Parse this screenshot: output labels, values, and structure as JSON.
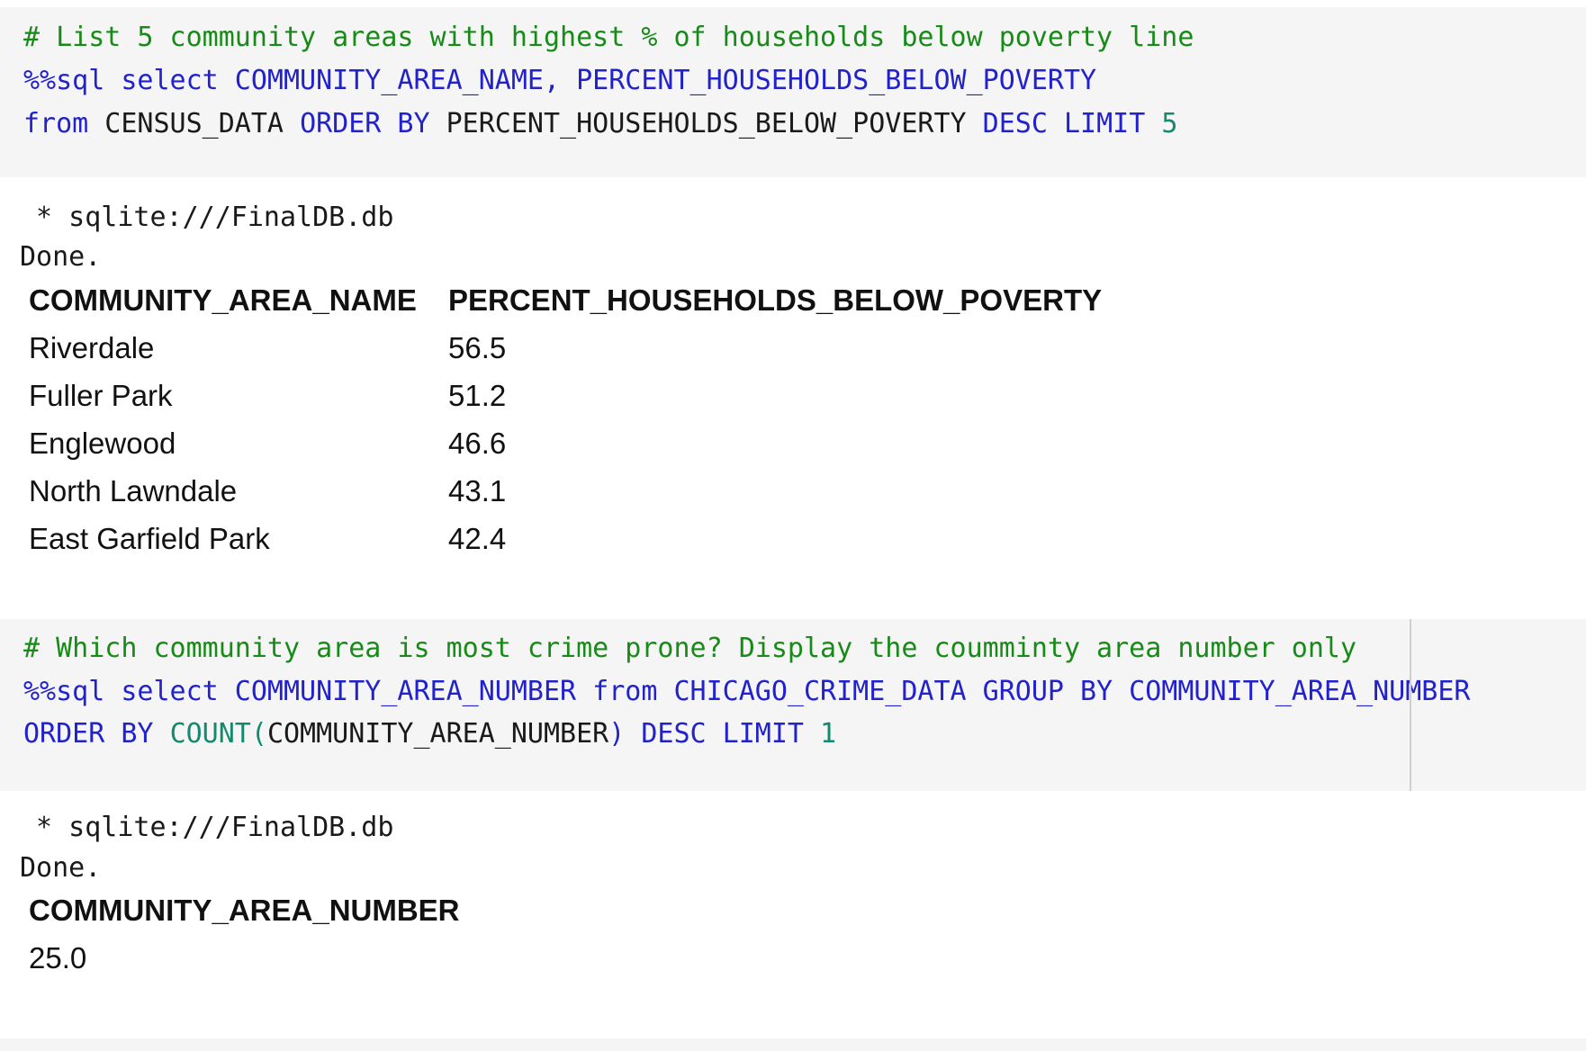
{
  "cells": [
    {
      "code_lines": [
        [
          {
            "t": "# List 5 community areas with highest % of households below poverty line",
            "c": "cm"
          }
        ],
        [
          {
            "t": "%%sql select COMMUNITY_AREA_NAME, PERCENT_HOUSEHOLDS_BELOW_POVERTY",
            "c": "kw"
          }
        ],
        [
          {
            "t": "from",
            "c": "kw"
          },
          {
            "t": " CENSUS_DATA ",
            "c": "id"
          },
          {
            "t": "ORDER BY",
            "c": "kw"
          },
          {
            "t": " PERCENT_HOUSEHOLDS_BELOW_POVERTY ",
            "c": "id"
          },
          {
            "t": "DESC LIMIT",
            "c": "kw"
          },
          {
            "t": " 5",
            "c": "num"
          }
        ]
      ],
      "output": {
        "connection": " * sqlite:///FinalDB.db",
        "status": "Done.",
        "columns": [
          "COMMUNITY_AREA_NAME",
          "PERCENT_HOUSEHOLDS_BELOW_POVERTY"
        ],
        "rows": [
          [
            "Riverdale",
            "56.5"
          ],
          [
            "Fuller Park",
            "51.2"
          ],
          [
            "Englewood",
            "46.6"
          ],
          [
            "North Lawndale",
            "43.1"
          ],
          [
            "East Garfield Park",
            "42.4"
          ]
        ]
      }
    },
    {
      "code_lines": [
        [
          {
            "t": "# Which community area is most crime prone? Display the coumminty area number only",
            "c": "cm"
          }
        ],
        [
          {
            "t": "%%sql select COMMUNITY_AREA_NUMBER from CHICAGO_CRIME_DATA GROUP BY COMMUNITY_AREA_NUMBER",
            "c": "kw"
          }
        ],
        [
          {
            "t": "ORDER BY ",
            "c": "kw"
          },
          {
            "t": "COUNT(",
            "c": "num"
          },
          {
            "t": "COMMUNITY_AREA_NUMBER",
            "c": "id"
          },
          {
            "t": ") ",
            "c": "kw"
          },
          {
            "t": "DESC LIMIT ",
            "c": "kw"
          },
          {
            "t": "1",
            "c": "num"
          }
        ]
      ],
      "output": {
        "connection": " * sqlite:///FinalDB.db",
        "status": "Done.",
        "columns": [
          "COMMUNITY_AREA_NUMBER"
        ],
        "rows": [
          [
            "25.0"
          ]
        ]
      }
    }
  ]
}
